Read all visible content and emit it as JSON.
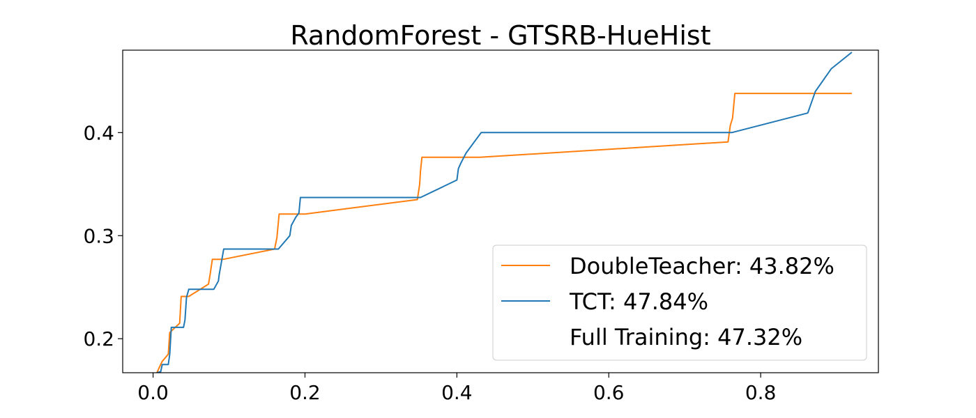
{
  "chart_data": {
    "type": "line",
    "title": "RandomForest - GTSRB-HueHist",
    "xlabel": "",
    "ylabel": "",
    "xlim": [
      -0.04,
      0.955
    ],
    "ylim": [
      0.167,
      0.48
    ],
    "xticks": [
      0.0,
      0.2,
      0.4,
      0.6,
      0.8
    ],
    "xtick_labels": [
      "0.0",
      "0.2",
      "0.4",
      "0.6",
      "0.8"
    ],
    "yticks": [
      0.2,
      0.3,
      0.4
    ],
    "ytick_labels": [
      "0.2",
      "0.3",
      "0.4"
    ],
    "grid": false,
    "legend_position": "lower-right",
    "series": [
      {
        "name": "DoubleTeacher: 43.82%",
        "color": "#ff7f0e",
        "x": [
          0.005,
          0.01,
          0.012,
          0.02,
          0.022,
          0.035,
          0.037,
          0.047,
          0.073,
          0.075,
          0.078,
          0.092,
          0.16,
          0.163,
          0.166,
          0.2,
          0.348,
          0.351,
          0.352,
          0.354,
          0.43,
          0.757,
          0.76,
          0.763,
          0.766,
          0.92
        ],
        "y": [
          0.167,
          0.175,
          0.178,
          0.185,
          0.206,
          0.215,
          0.241,
          0.241,
          0.253,
          0.262,
          0.277,
          0.277,
          0.287,
          0.298,
          0.321,
          0.321,
          0.335,
          0.35,
          0.362,
          0.376,
          0.376,
          0.391,
          0.407,
          0.414,
          0.438,
          0.438
        ]
      },
      {
        "name": "TCT: 47.84%",
        "color": "#1f77b4",
        "x": [
          0.005,
          0.01,
          0.012,
          0.02,
          0.022,
          0.024,
          0.04,
          0.042,
          0.044,
          0.047,
          0.08,
          0.086,
          0.087,
          0.093,
          0.165,
          0.18,
          0.182,
          0.188,
          0.192,
          0.194,
          0.352,
          0.4,
          0.402,
          0.405,
          0.412,
          0.432,
          0.762,
          0.862,
          0.872,
          0.893,
          0.92
        ],
        "y": [
          0.167,
          0.168,
          0.175,
          0.175,
          0.185,
          0.211,
          0.211,
          0.218,
          0.24,
          0.248,
          0.248,
          0.256,
          0.262,
          0.287,
          0.287,
          0.3,
          0.31,
          0.318,
          0.322,
          0.337,
          0.337,
          0.354,
          0.365,
          0.37,
          0.38,
          0.4,
          0.4,
          0.419,
          0.44,
          0.462,
          0.478
        ]
      }
    ],
    "legend_entries": [
      {
        "label": "DoubleTeacher: 43.82%",
        "color": "#ff7f0e"
      },
      {
        "label": "TCT: 47.84%",
        "color": "#1f77b4"
      },
      {
        "label": "Full Training: 47.32%",
        "color": "none"
      }
    ]
  }
}
